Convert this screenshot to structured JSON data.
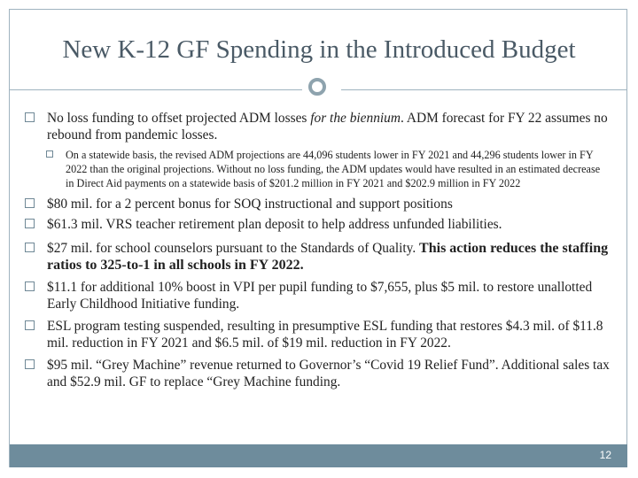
{
  "slide": {
    "title": "New K-12 GF Spending in the Introduced Budget",
    "page_number": "12"
  },
  "bullets": [
    {
      "text_a": "No loss funding to offset projected ADM losses ",
      "text_italic": "for the biennium",
      "text_b": ". ADM forecast for FY 22 assumes no rebound from pandemic losses."
    },
    {
      "text": "$80 mil. for a 2 percent bonus for SOQ instructional and support positions"
    },
    {
      "text": "$61.3 mil. VRS teacher retirement plan deposit to help address unfunded liabilities."
    },
    {
      "text": "$27 mil. for school counselors pursuant to the Standards of Quality. ",
      "bold_text": "This action reduces the staffing ratios to 325-to-1 in all schools in FY 2022."
    },
    {
      "text": "$11.1 for additional 10% boost in VPI per pupil funding to $7,655, plus $5 mil. to restore unallotted Early Childhood Initiative funding."
    },
    {
      "text": "ESL program testing suspended, resulting in presumptive ESL funding that restores $4.3 mil. of $11.8 mil. reduction in FY 2021 and $6.5 mil. of $19 mil. reduction in FY 2022."
    },
    {
      "text": "$95 mil. “Grey Machine” revenue returned to Governor’s “Covid 19 Relief Fund”. Additional sales tax and $52.9 mil. GF to replace “Grey Machine funding."
    }
  ],
  "sub_bullet": {
    "text": "On a statewide basis, the revised ADM projections are 44,096 students lower in FY 2021 and 44,296 students lower in FY 2022 than the original projections. Without no loss funding, the ADM updates would have resulted in an estimated decrease in Direct Aid payments on a statewide basis of $201.2 million in FY 2021 and $202.9 million in FY 2022"
  },
  "colors": {
    "title": "#4a5a66",
    "rule": "#9fb3bf",
    "footer_bar": "#6e8c9c"
  }
}
